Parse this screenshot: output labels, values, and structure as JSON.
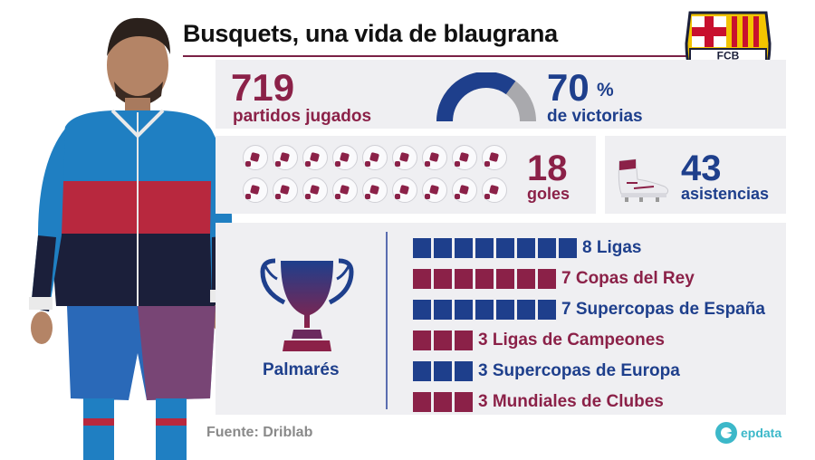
{
  "header": {
    "title": "Busquets, una vida de blaugrana"
  },
  "crest": {
    "letters": "FCB"
  },
  "stats": {
    "matches": {
      "value": "719",
      "label": "partidos jugados"
    },
    "wins": {
      "value": "70",
      "unit": "%",
      "label": "de victorias",
      "fraction": 0.7
    },
    "goals": {
      "value": "18",
      "label": "goles",
      "count": 18
    },
    "assists": {
      "value": "43",
      "label": "asistencias"
    }
  },
  "palmares": {
    "label": "Palmarés",
    "items": [
      {
        "count": 8,
        "label": "8 Ligas",
        "color": "#1e3f8c"
      },
      {
        "count": 7,
        "label": "7 Copas del Rey",
        "color": "#8b2148"
      },
      {
        "count": 7,
        "label": "7 Supercopas de España",
        "color": "#1e3f8c"
      },
      {
        "count": 3,
        "label": "3 Ligas de Campeones",
        "color": "#8b2148"
      },
      {
        "count": 3,
        "label": "3 Supercopas de Europa",
        "color": "#1e3f8c"
      },
      {
        "count": 3,
        "label": "3 Mundiales de Clubes",
        "color": "#8b2148"
      }
    ]
  },
  "footer": {
    "source": "Fuente: Driblab",
    "brand": "epdata"
  },
  "colors": {
    "blue": "#1e3f8c",
    "maroon": "#8b2148",
    "gray": "#a9a9ad",
    "teal": "#3cb8c9"
  }
}
